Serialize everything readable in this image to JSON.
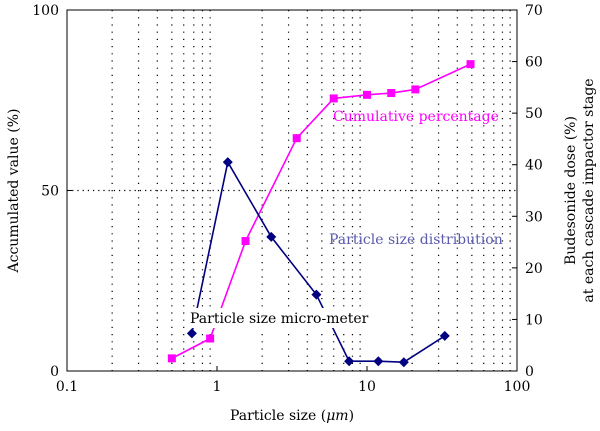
{
  "chart_data": {
    "type": "line",
    "xlabel_prefix": "Particle size (",
    "xlabel_unit": "μm",
    "xlabel_suffix": ")",
    "ylabel": "Accumulated value (%)",
    "y2label_line1": "Budesonide dose (%)",
    "y2label_line2": "at each cascade impactor stage",
    "x_scale": "log",
    "xlim": [
      0.1,
      100
    ],
    "ylim": [
      0,
      100
    ],
    "y2lim": [
      0,
      70
    ],
    "xticks": [
      0.1,
      1,
      10,
      100
    ],
    "xtick_labels": [
      "0.1",
      "1",
      "10",
      "100"
    ],
    "yticks": [
      0,
      50,
      100
    ],
    "ytick_labels": [
      "0",
      "50",
      "100"
    ],
    "y2ticks": [
      0,
      10,
      20,
      30,
      40,
      50,
      60,
      70
    ],
    "y2tick_labels": [
      "0",
      "10",
      "20",
      "30",
      "40",
      "50",
      "60",
      "70"
    ],
    "grid": "dotted vertical lines at minor x ticks, dotted horizontal line at y=50",
    "series": [
      {
        "axis": "left",
        "marker": "square",
        "color": "#ff00ff",
        "x": [
          0.5,
          0.9,
          1.55,
          3.4,
          6.0,
          10.0,
          14.5,
          21.0,
          49.0
        ],
        "y": [
          3.5,
          9.0,
          36.0,
          64.5,
          75.5,
          76.5,
          77.0,
          78.0,
          85.0
        ]
      },
      {
        "axis": "right",
        "marker": "diamond",
        "color": "#000080",
        "x": [
          0.68,
          1.18,
          2.3,
          4.6,
          7.6,
          11.9,
          17.6,
          33.0
        ],
        "y": [
          7.3,
          40.5,
          26.0,
          14.8,
          1.9,
          1.9,
          1.7,
          6.8
        ]
      }
    ],
    "annotations": [
      {
        "text": "Cumulative percentage",
        "color": "#ff00ff"
      },
      {
        "text": "Particle size distribution",
        "color": "#5a5ab0"
      },
      {
        "text": "Particle size micro-meter",
        "color": "#000000"
      }
    ]
  }
}
